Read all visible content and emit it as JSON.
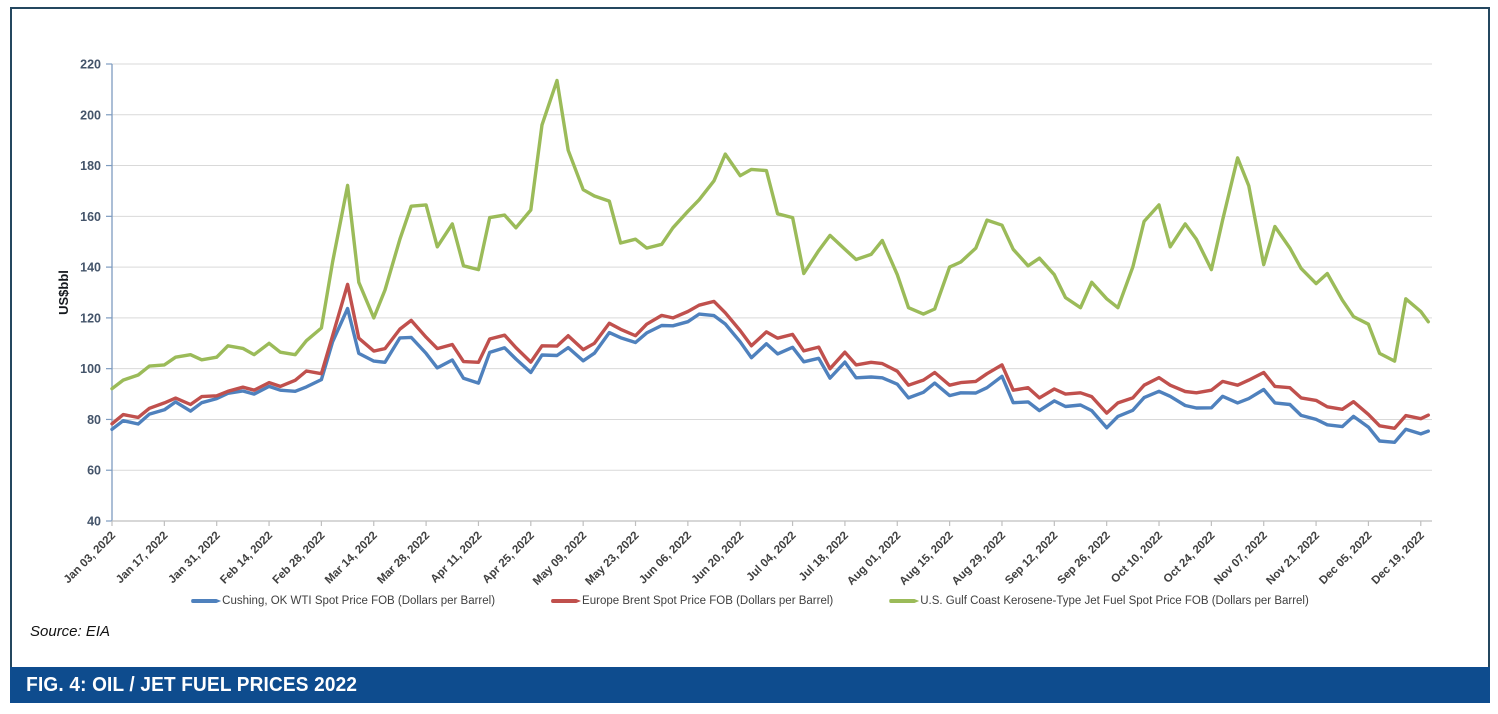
{
  "figure": {
    "caption": "FIG. 4: OIL / JET FUEL PRICES 2022",
    "source": "Source: EIA",
    "caption_bar_color": "#0e4c8e",
    "box_border_color": "#24475f"
  },
  "chart_data": {
    "type": "line",
    "title": "",
    "xlabel": "",
    "ylabel": "US$bbl",
    "ylim": [
      40,
      220
    ],
    "ytick_step": 20,
    "grid": "horizontal",
    "legend_position": "bottom",
    "x_unit": "days since Jan 03, 2022 (prices sampled twice weekly)",
    "x_domain": [
      0,
      353
    ],
    "x_tick_interval_days": 14,
    "x_tick_labels": [
      "Jan 03, 2022",
      "Jan 17, 2022",
      "Jan 31, 2022",
      "Feb 14, 2022",
      "Feb 28, 2022",
      "Mar 14, 2022",
      "Mar 28, 2022",
      "Apr 11, 2022",
      "Apr 25, 2022",
      "May 09, 2022",
      "May 23, 2022",
      "Jun 06, 2022",
      "Jun 20, 2022",
      "Jul 04, 2022",
      "Jul 18, 2022",
      "Aug 01, 2022",
      "Aug 15, 2022",
      "Aug 29, 2022",
      "Sep 12, 2022",
      "Sep 26, 2022",
      "Oct 10, 2022",
      "Oct 24, 2022",
      "Nov 07, 2022",
      "Nov 21, 2022",
      "Dec 05, 2022",
      "Dec 19, 2022"
    ],
    "x_days": [
      0,
      3,
      7,
      10,
      14,
      17,
      21,
      24,
      28,
      31,
      35,
      38,
      42,
      45,
      49,
      52,
      56,
      59,
      63,
      66,
      70,
      73,
      77,
      80,
      84,
      87,
      91,
      94,
      98,
      101,
      105,
      108,
      112,
      115,
      119,
      122,
      126,
      129,
      133,
      136,
      140,
      143,
      147,
      150,
      154,
      157,
      161,
      164,
      168,
      171,
      175,
      178,
      182,
      185,
      189,
      192,
      196,
      199,
      203,
      206,
      210,
      213,
      217,
      220,
      224,
      227,
      231,
      234,
      238,
      241,
      245,
      248,
      252,
      255,
      259,
      262,
      266,
      269,
      273,
      276,
      280,
      283,
      287,
      290,
      294,
      297,
      301,
      304,
      308,
      311,
      315,
      318,
      322,
      325,
      329,
      332,
      336,
      339,
      343,
      346,
      350,
      352
    ],
    "axis_colors": {
      "y_axis": "#7e9cc0",
      "x_axis": "#bfbfbf",
      "gridline": "#d9d9d9",
      "tick_label": "#404040",
      "y_tick_label": "#44546a"
    },
    "series": [
      {
        "name": "Cushing, OK WTI Spot Price FOB (Dollars per Barrel)",
        "color": "#4f81bd",
        "values": [
          76.1,
          79.5,
          78.2,
          82.1,
          83.8,
          86.9,
          83.3,
          86.6,
          88.2,
          90.3,
          91.2,
          90.0,
          93.0,
          91.5,
          91.1,
          92.8,
          95.7,
          110.6,
          123.7,
          106.0,
          103.0,
          102.5,
          112.1,
          112.3,
          106.0,
          100.3,
          103.4,
          96.2,
          94.3,
          106.4,
          108.2,
          103.8,
          98.5,
          105.4,
          105.2,
          108.3,
          103.1,
          106.1,
          114.2,
          112.2,
          110.3,
          114.1,
          117.0,
          116.9,
          118.5,
          121.5,
          120.9,
          117.6,
          110.6,
          104.3,
          109.8,
          105.8,
          108.4,
          102.7,
          104.1,
          96.3,
          102.6,
          96.4,
          96.7,
          96.4,
          93.9,
          88.5,
          90.7,
          94.3,
          89.4,
          90.5,
          90.4,
          92.5,
          97.0,
          86.6,
          86.9,
          83.5,
          87.3,
          85.1,
          85.7,
          83.5,
          76.7,
          81.2,
          83.6,
          88.6,
          91.1,
          89.1,
          85.5,
          84.5,
          84.6,
          89.1,
          86.5,
          88.2,
          91.8,
          86.5,
          85.9,
          81.6,
          80.0,
          77.9,
          77.2,
          81.2,
          77.0,
          71.5,
          71.0,
          76.1,
          74.3,
          75.4
        ]
      },
      {
        "name": "Europe Brent Spot Price FOB (Dollars per Barrel)",
        "color": "#c0504d",
        "values": [
          78.3,
          81.9,
          80.8,
          84.4,
          86.5,
          88.4,
          85.9,
          89.0,
          89.3,
          91.1,
          92.7,
          91.5,
          94.5,
          93.0,
          95.4,
          99.1,
          98.0,
          113.0,
          133.2,
          112.0,
          106.9,
          107.9,
          115.6,
          119.0,
          112.4,
          107.9,
          109.5,
          102.8,
          102.5,
          111.7,
          113.2,
          108.3,
          102.6,
          109.0,
          108.9,
          113.0,
          107.5,
          110.0,
          117.9,
          115.5,
          113.0,
          117.5,
          121.0,
          120.0,
          122.5,
          125.0,
          126.5,
          122.0,
          115.0,
          109.0,
          114.5,
          112.0,
          113.5,
          107.0,
          108.5,
          100.0,
          106.5,
          101.5,
          102.5,
          102.0,
          99.0,
          93.5,
          95.5,
          98.5,
          93.5,
          94.5,
          95.0,
          98.0,
          101.5,
          91.5,
          92.5,
          88.5,
          92.0,
          90.0,
          90.5,
          89.0,
          82.5,
          86.5,
          88.5,
          93.5,
          96.5,
          93.5,
          91.0,
          90.5,
          91.5,
          95.0,
          93.5,
          95.5,
          98.5,
          93.0,
          92.5,
          88.5,
          87.5,
          85.0,
          84.0,
          87.0,
          82.0,
          77.5,
          76.5,
          81.5,
          80.3,
          81.7
        ]
      },
      {
        "name": "U.S. Gulf Coast Kerosene-Type Jet Fuel Spot Price FOB (Dollars per Barrel)",
        "color": "#9bbb59",
        "values": [
          92.1,
          95.5,
          97.5,
          101.0,
          101.5,
          104.5,
          105.5,
          103.5,
          104.5,
          109.0,
          108.0,
          105.5,
          110.0,
          106.5,
          105.5,
          111.0,
          116.0,
          142.0,
          172.2,
          134.0,
          120.0,
          131.0,
          151.0,
          164.0,
          164.5,
          148.0,
          157.0,
          140.5,
          139.0,
          159.5,
          160.5,
          155.5,
          162.5,
          196.0,
          213.5,
          186.0,
          170.5,
          168.0,
          166.0,
          149.5,
          151.0,
          147.5,
          149.0,
          155.5,
          162.0,
          166.5,
          174.0,
          184.5,
          176.0,
          178.5,
          178.0,
          161.0,
          159.5,
          137.5,
          146.5,
          152.5,
          147.0,
          143.0,
          145.0,
          150.5,
          137.0,
          124.0,
          121.5,
          123.5,
          140.0,
          142.0,
          147.5,
          158.5,
          156.5,
          147.0,
          140.5,
          143.5,
          137.0,
          128.0,
          124.0,
          134.0,
          127.5,
          124.0,
          140.0,
          158.0,
          164.5,
          148.0,
          157.0,
          151.0,
          139.0,
          158.5,
          183.0,
          172.0,
          141.0,
          156.0,
          147.5,
          139.5,
          133.5,
          137.5,
          127.0,
          120.5,
          117.5,
          106.0,
          103.0,
          127.5,
          122.5,
          118.5
        ]
      }
    ]
  }
}
